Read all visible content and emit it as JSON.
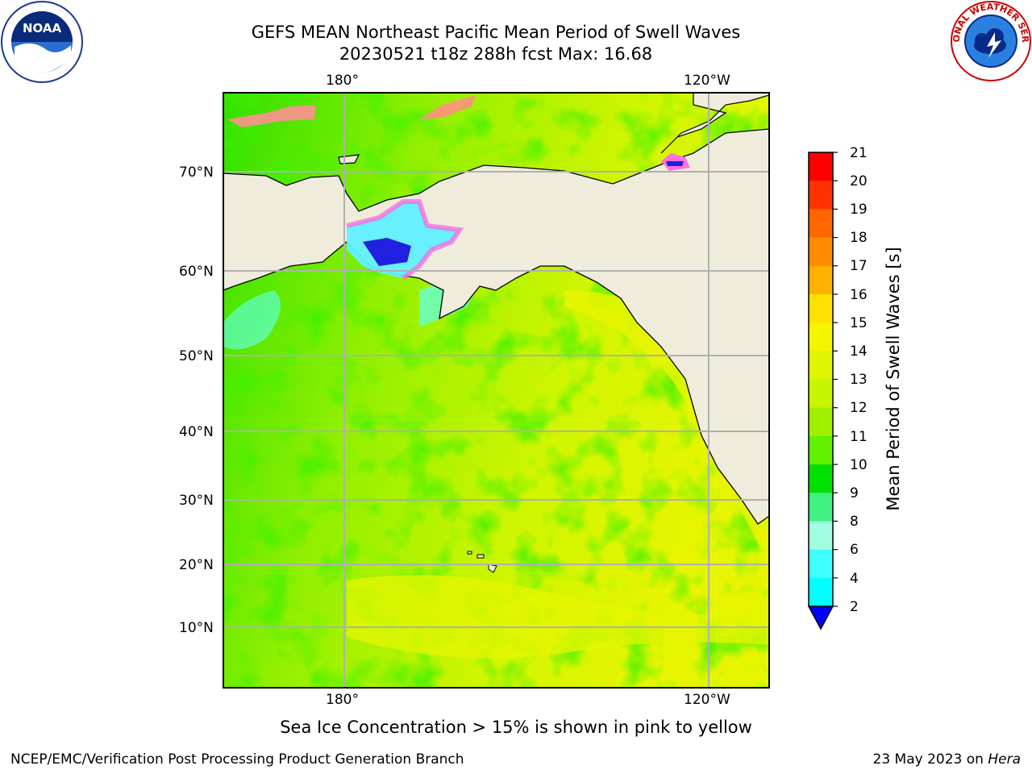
{
  "header": {
    "title_line1": "GEFS MEAN Northeast Pacific Mean Period of Swell Waves",
    "title_line2": "20230521 t18z 288h fcst   Max: 16.68"
  },
  "logos": {
    "left": "noaa-logo",
    "left_text": "NOAA",
    "right": "nws-logo",
    "right_text": "NATIONAL WEATHER SERVICE"
  },
  "map": {
    "top_lon_labels": [
      "180°",
      "120°W"
    ],
    "bottom_lon_labels": [
      "180°",
      "120°W"
    ],
    "lat_labels": [
      "70°N",
      "60°N",
      "50°N",
      "40°N",
      "30°N",
      "20°N",
      "10°N"
    ],
    "land_color": "#efecdc",
    "ocean_base_color": "#d8f500"
  },
  "colorbar": {
    "title": "Mean Period of Swell Waves [s]",
    "ticks": [
      "21",
      "20",
      "19",
      "18",
      "17",
      "16",
      "15",
      "14",
      "13",
      "12",
      "11",
      "10",
      "9",
      "8",
      "6",
      "4",
      "2"
    ],
    "colors": [
      "#ff0000",
      "#ff3300",
      "#ff6600",
      "#ff8c00",
      "#ffb000",
      "#ffe000",
      "#f5f500",
      "#e0f500",
      "#c8f500",
      "#a0f000",
      "#60f000",
      "#00e000",
      "#40f080",
      "#a0ffe0",
      "#40ffff",
      "#00ffff",
      "#00d0ff",
      "#0060ff",
      "#0000ff"
    ]
  },
  "footer": {
    "note": "Sea Ice Concentration > 15% is shown in pink to yellow",
    "credit": "NCEP/EMC/Verification Post Processing Product Generation Branch",
    "date": "23 May 2023 on",
    "host": "Hera"
  }
}
